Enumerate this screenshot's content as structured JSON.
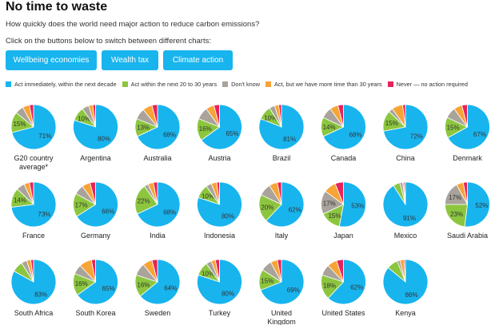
{
  "header": {
    "title": "No time to waste",
    "subtitle": "How quickly does the world need major action to reduce carbon emissions?",
    "instruction": "Click on the buttons below to switch between different charts:"
  },
  "buttons": [
    "Wellbeing economies",
    "Wealth tax",
    "Climate action"
  ],
  "colors": {
    "button": "#18b4ee",
    "immediately": "#18b4ee",
    "decades": "#8cc63f",
    "dontknow": "#a9a39b",
    "later": "#f7a437",
    "never": "#e5245a"
  },
  "chart_data": {
    "type": "pie",
    "legend": [
      {
        "key": "immediately",
        "label": "Act immediately, within the next decade"
      },
      {
        "key": "decades",
        "label": "Act within the next 20 to 30 years"
      },
      {
        "key": "dontknow",
        "label": "Don't know"
      },
      {
        "key": "later",
        "label": "Act, but we have more time than 30 years"
      },
      {
        "key": "never",
        "label": "Never — no action required"
      }
    ],
    "pies": [
      {
        "country": "G20 country average*",
        "immediately": 71,
        "decades": 15,
        "dontknow": 6,
        "later": 5,
        "never": 3
      },
      {
        "country": "Argentina",
        "immediately": 80,
        "decades": 10,
        "dontknow": 5,
        "later": 3,
        "never": 2
      },
      {
        "country": "Australia",
        "immediately": 68,
        "decades": 13,
        "dontknow": 8,
        "later": 7,
        "never": 4
      },
      {
        "country": "Austria",
        "immediately": 65,
        "decades": 16,
        "dontknow": 9,
        "later": 6,
        "never": 4
      },
      {
        "country": "Brazil",
        "immediately": 81,
        "decades": 10,
        "dontknow": 4,
        "later": 3,
        "never": 2
      },
      {
        "country": "Canada",
        "immediately": 68,
        "decades": 14,
        "dontknow": 8,
        "later": 6,
        "never": 4
      },
      {
        "country": "China",
        "immediately": 72,
        "decades": 15,
        "dontknow": 3,
        "later": 8,
        "never": 2
      },
      {
        "country": "Denmark",
        "immediately": 67,
        "decades": 15,
        "dontknow": 8,
        "later": 6,
        "never": 4
      },
      {
        "country": "France",
        "immediately": 73,
        "decades": 14,
        "dontknow": 6,
        "later": 4,
        "never": 3
      },
      {
        "country": "Germany",
        "immediately": 66,
        "decades": 17,
        "dontknow": 7,
        "later": 6,
        "never": 4
      },
      {
        "country": "India",
        "immediately": 68,
        "decades": 22,
        "dontknow": 3,
        "later": 4,
        "never": 3
      },
      {
        "country": "Indonesia",
        "immediately": 80,
        "decades": 10,
        "dontknow": 4,
        "later": 4,
        "never": 2
      },
      {
        "country": "Italy",
        "immediately": 62,
        "decades": 20,
        "dontknow": 9,
        "later": 6,
        "never": 3
      },
      {
        "country": "Japan",
        "immediately": 53,
        "decades": 15,
        "dontknow": 17,
        "later": 9,
        "never": 6
      },
      {
        "country": "Mexico",
        "immediately": 91,
        "decades": 5,
        "dontknow": 2,
        "later": 1,
        "never": 1
      },
      {
        "country": "Saudi Arabia",
        "immediately": 52,
        "decades": 23,
        "dontknow": 17,
        "later": 5,
        "never": 3
      },
      {
        "country": "South Africa",
        "immediately": 83,
        "decades": 8,
        "dontknow": 4,
        "later": 3,
        "never": 2
      },
      {
        "country": "South Korea",
        "immediately": 65,
        "decades": 16,
        "dontknow": 7,
        "later": 9,
        "never": 3
      },
      {
        "country": "Sweden",
        "immediately": 64,
        "decades": 16,
        "dontknow": 9,
        "later": 7,
        "never": 4
      },
      {
        "country": "Turkey",
        "immediately": 80,
        "decades": 10,
        "dontknow": 4,
        "later": 3,
        "never": 3
      },
      {
        "country": "United Kingdom",
        "immediately": 69,
        "decades": 15,
        "dontknow": 8,
        "later": 5,
        "never": 3
      },
      {
        "country": "United States",
        "immediately": 62,
        "decades": 18,
        "dontknow": 8,
        "later": 7,
        "never": 5
      },
      {
        "country": "Kenya",
        "immediately": 86,
        "decades": 8,
        "dontknow": 2,
        "later": 3,
        "never": 1
      }
    ]
  }
}
